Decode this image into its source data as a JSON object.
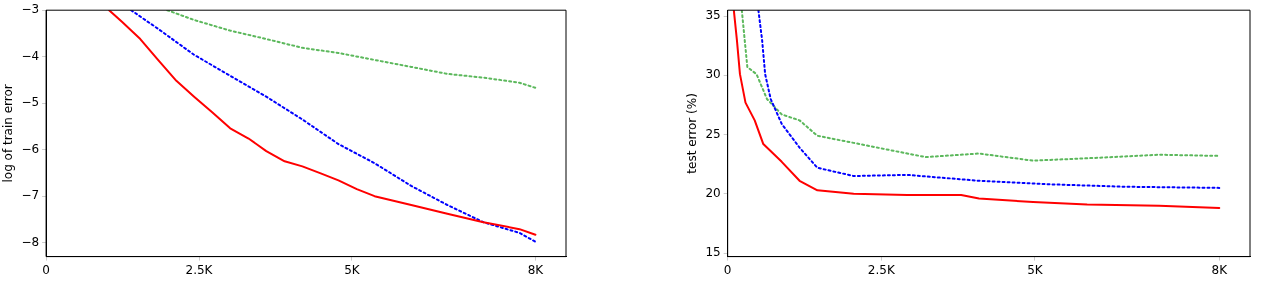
{
  "chart_data": [
    {
      "type": "line",
      "ylabel": "log of train error",
      "xlim": [
        0,
        8500
      ],
      "xticks": [
        0,
        {
          "value": 2500,
          "label": "2.5K"
        },
        {
          "value": 5000,
          "label": "5K"
        },
        {
          "value": 8000,
          "label": "8K"
        }
      ],
      "ylim": [
        -8.3,
        -3
      ],
      "yticks": [
        {
          "value": -3,
          "label": "−3"
        },
        {
          "value": -4,
          "label": "−4"
        },
        {
          "value": -5,
          "label": "−5"
        },
        {
          "value": -6,
          "label": "−6"
        },
        {
          "value": -7,
          "label": "−7"
        },
        {
          "value": -8,
          "label": "−8"
        }
      ],
      "grid": false,
      "legend": false,
      "marker": "none",
      "series": [
        {
          "color": "#ff0000",
          "line_style": "solid",
          "x": [
            1030,
            1240,
            1540,
            1830,
            2130,
            2420,
            2720,
            3010,
            3310,
            3600,
            3900,
            4190,
            4490,
            4780,
            5080,
            5370,
            5970,
            6560,
            7150,
            7740,
            8000
          ],
          "values": [
            -3,
            -3.25,
            -3.62,
            -4.07,
            -4.52,
            -4.86,
            -5.2,
            -5.54,
            -5.76,
            -6.03,
            -6.25,
            -6.36,
            -6.51,
            -6.66,
            -6.85,
            -7.0,
            -7.19,
            -7.38,
            -7.56,
            -7.71,
            -7.83
          ]
        },
        {
          "color": "#0000ff",
          "line_style": "dotted",
          "x": [
            1390,
            1830,
            2420,
            3010,
            3600,
            4190,
            4780,
            5370,
            5970,
            6560,
            7150,
            7740,
            8000
          ],
          "values": [
            -3,
            -3.4,
            -3.96,
            -4.41,
            -4.86,
            -5.35,
            -5.88,
            -6.29,
            -6.78,
            -7.19,
            -7.56,
            -7.79,
            -7.98
          ]
        },
        {
          "color": "#5cb85c",
          "line_style": "dotted",
          "x": [
            1980,
            2420,
            3010,
            3600,
            4190,
            4780,
            5370,
            5970,
            6560,
            7150,
            7740,
            8000
          ],
          "values": [
            -3,
            -3.21,
            -3.44,
            -3.62,
            -3.81,
            -3.92,
            -4.07,
            -4.22,
            -4.37,
            -4.45,
            -4.56,
            -4.67
          ]
        }
      ]
    },
    {
      "type": "line",
      "ylabel": "test error (%)",
      "xlim": [
        0,
        8500
      ],
      "xticks": [
        0,
        {
          "value": 2500,
          "label": "2.5K"
        },
        {
          "value": 5000,
          "label": "5K"
        },
        {
          "value": 8000,
          "label": "8K"
        }
      ],
      "ylim": [
        14.7,
        35.5
      ],
      "yticks": [
        15,
        20,
        25,
        30,
        35
      ],
      "grid": false,
      "legend": false,
      "marker": "none",
      "series": [
        {
          "color": "#ff0000",
          "line_style": "solid",
          "x": [
            100,
            150,
            200,
            290,
            440,
            580,
            880,
            1170,
            1460,
            2050,
            2920,
            3800,
            4090,
            4970,
            5850,
            7020,
            8000
          ],
          "values": [
            35.5,
            33.0,
            30.1,
            27.7,
            26.2,
            24.2,
            22.7,
            21.1,
            20.3,
            20.0,
            19.9,
            19.9,
            19.6,
            19.3,
            19.1,
            19.0,
            18.8
          ]
        },
        {
          "color": "#0000ff",
          "line_style": "dotted",
          "x": [
            500,
            560,
            610,
            700,
            880,
            1170,
            1460,
            2050,
            2920,
            4090,
            5260,
            6430,
            8000
          ],
          "values": [
            35.5,
            33.0,
            30.1,
            28.0,
            25.9,
            23.9,
            22.2,
            21.5,
            21.6,
            21.1,
            20.8,
            20.6,
            20.5
          ]
        },
        {
          "color": "#5cb85c",
          "line_style": "dotted",
          "x": [
            230,
            320,
            470,
            640,
            880,
            1170,
            1460,
            2050,
            2630,
            3220,
            4090,
            4970,
            5850,
            7020,
            8000
          ],
          "values": [
            35.5,
            30.7,
            30.1,
            28.0,
            26.7,
            26.2,
            24.9,
            24.3,
            23.7,
            23.1,
            23.4,
            22.8,
            23.0,
            23.3,
            23.2
          ]
        }
      ]
    }
  ]
}
